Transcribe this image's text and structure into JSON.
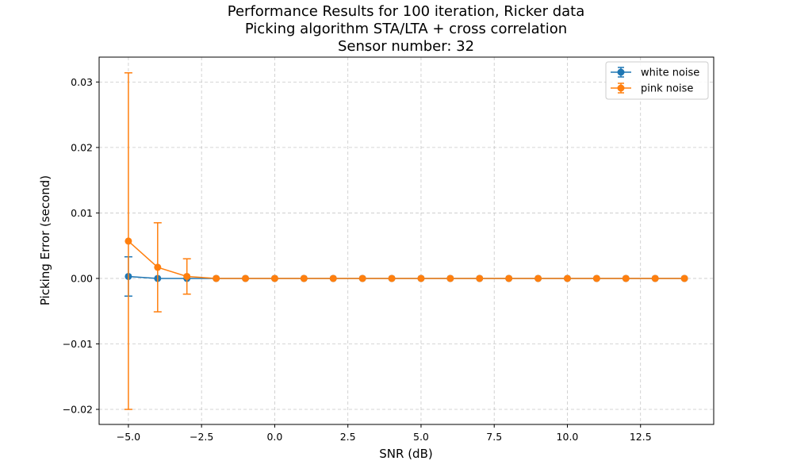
{
  "chart_data": {
    "type": "line",
    "title_lines": [
      "Performance Results for 100 iteration, Ricker data",
      "Picking algorithm STA/LTA + cross correlation",
      "Sensor number: 32"
    ],
    "xlabel": "SNR (dB)",
    "ylabel": "Picking Error (second)",
    "xlim": [
      -6.0,
      15.0
    ],
    "ylim": [
      -0.0223,
      0.0338
    ],
    "xticks": [
      -5.0,
      -2.5,
      0.0,
      2.5,
      5.0,
      7.5,
      10.0,
      12.5
    ],
    "xtick_labels": [
      "−5.0",
      "−2.5",
      "0.0",
      "2.5",
      "5.0",
      "7.5",
      "10.0",
      "12.5"
    ],
    "yticks": [
      -0.02,
      -0.01,
      0.0,
      0.01,
      0.02,
      0.03
    ],
    "ytick_labels": [
      "−0.02",
      "−0.01",
      "0.00",
      "0.01",
      "0.02",
      "0.03"
    ],
    "grid": true,
    "legend_position": "top-right",
    "x": [
      -5,
      -4,
      -3,
      -2,
      -1,
      0,
      1,
      2,
      3,
      4,
      5,
      6,
      7,
      8,
      9,
      10,
      11,
      12,
      13,
      14
    ],
    "series": [
      {
        "name": "white noise",
        "color": "#1f77b4",
        "values": [
          0.0003,
          0.0,
          0.0,
          0.0,
          0.0,
          0.0,
          0.0,
          0.0,
          0.0,
          0.0,
          0.0,
          0.0,
          0.0,
          0.0,
          0.0,
          0.0,
          0.0,
          0.0,
          0.0,
          0.0
        ],
        "errors": [
          0.003,
          0.0,
          0.0,
          0.0,
          0.0,
          0.0,
          0.0,
          0.0,
          0.0,
          0.0,
          0.0,
          0.0,
          0.0,
          0.0,
          0.0,
          0.0,
          0.0,
          0.0,
          0.0,
          0.0
        ]
      },
      {
        "name": "pink noise",
        "color": "#ff7f0e",
        "values": [
          0.0057,
          0.0017,
          0.0003,
          0.0,
          0.0,
          0.0,
          0.0,
          0.0,
          0.0,
          0.0,
          0.0,
          0.0,
          0.0,
          0.0,
          0.0,
          0.0,
          0.0,
          0.0,
          0.0,
          0.0
        ],
        "errors": [
          0.0257,
          0.0068,
          0.0027,
          0.0,
          0.0,
          0.0,
          0.0,
          0.0,
          0.0,
          0.0,
          0.0,
          0.0,
          0.0,
          0.0,
          0.0,
          0.0,
          0.0,
          0.0,
          0.0,
          0.0
        ]
      }
    ]
  }
}
